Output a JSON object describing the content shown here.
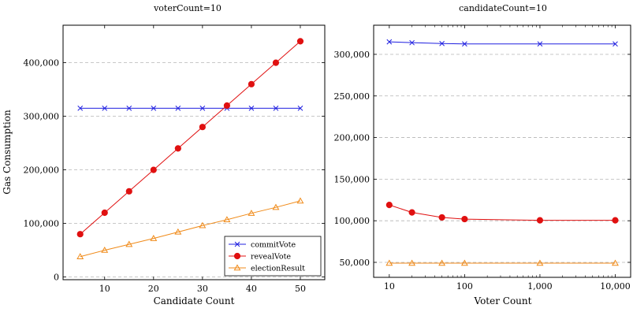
{
  "chart_data": [
    {
      "type": "line",
      "title": "voterCount=10",
      "xlabel": "Candidate Count",
      "ylabel": "Gas Consumption",
      "x": [
        5,
        10,
        15,
        20,
        25,
        30,
        35,
        40,
        45,
        50
      ],
      "xlim": [
        1.5,
        55
      ],
      "ylim": [
        -5000,
        470000
      ],
      "x_ticks": [
        10,
        20,
        30,
        40,
        50
      ],
      "x_tick_labels": [
        "10",
        "20",
        "30",
        "40",
        "50"
      ],
      "y_ticks": [
        0,
        100000,
        200000,
        300000,
        400000
      ],
      "y_tick_labels": [
        "0",
        "100,000",
        "200,000",
        "300,000",
        "400,000"
      ],
      "grid": "y-dashed",
      "legend_position": "bottom-right",
      "series": [
        {
          "name": "commitVote",
          "color": "#2020e0",
          "marker": "cross",
          "values": [
            315000,
            315000,
            315000,
            315000,
            315000,
            315000,
            315000,
            315000,
            315000,
            315000
          ]
        },
        {
          "name": "revealVote",
          "color": "#e01010",
          "marker": "circle",
          "values": [
            80000,
            120000,
            160000,
            200000,
            240000,
            280000,
            320000,
            360000,
            400000,
            440000
          ]
        },
        {
          "name": "electionResult",
          "color": "#f08a18",
          "marker": "triangle",
          "values": [
            38000,
            50000,
            61000,
            72000,
            84000,
            96000,
            107000,
            119000,
            130000,
            142000
          ]
        }
      ]
    },
    {
      "type": "line",
      "title": "candidateCount=10",
      "xlabel": "Voter Count",
      "ylabel": "",
      "x_scale": "log",
      "x": [
        10,
        20,
        50,
        100,
        1000,
        10000
      ],
      "xlim": [
        6.2,
        16000
      ],
      "ylim": [
        32000,
        335000
      ],
      "x_ticks": [
        10,
        100,
        1000,
        10000
      ],
      "x_tick_labels": [
        "10",
        "100",
        "1,000",
        "10,000"
      ],
      "y_ticks": [
        50000,
        100000,
        150000,
        200000,
        250000,
        300000
      ],
      "y_tick_labels": [
        "50,000",
        "100,000",
        "150,000",
        "200,000",
        "250,000",
        "300,000"
      ],
      "grid": "y-dashed",
      "series": [
        {
          "color": "#2020e0",
          "marker": "cross",
          "values": [
            315000,
            314000,
            313000,
            312500,
            312500,
            312500
          ]
        },
        {
          "color": "#e01010",
          "marker": "circle",
          "values": [
            119000,
            110000,
            104000,
            102000,
            100500,
            100500
          ]
        },
        {
          "color": "#f08a18",
          "marker": "triangle",
          "values": [
            49000,
            49000,
            49000,
            49000,
            49000,
            49000
          ]
        }
      ]
    }
  ]
}
